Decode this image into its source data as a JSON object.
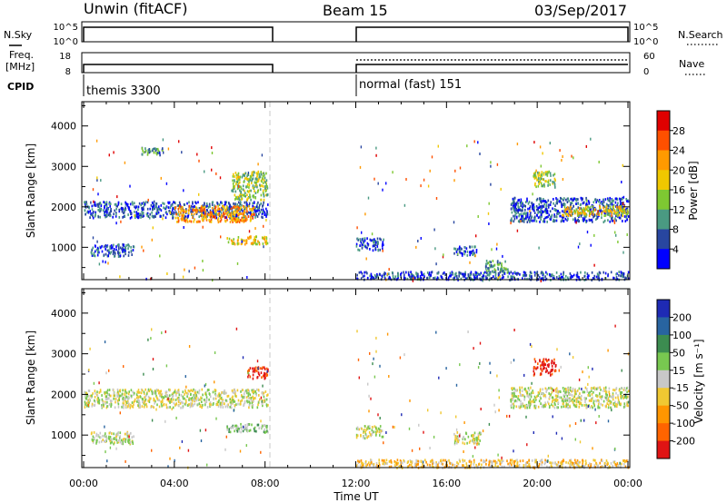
{
  "header": {
    "station": "Unwin (fitACF)",
    "beam": "Beam 15",
    "date": "03/Sep/2017"
  },
  "noise_panel": {
    "left_label": "N.Sky",
    "left_ticks": [
      "10^5",
      "10^0"
    ],
    "right_label": "N.Search",
    "right_ticks": [
      "10^5",
      "10^0"
    ]
  },
  "freq_panel": {
    "left_label_1": "Freq.",
    "left_label_2": "[MHz]",
    "left_ticks": [
      "18",
      "8"
    ],
    "right_label": "Nave",
    "right_ticks": [
      "60",
      "0"
    ]
  },
  "cpid_panel": {
    "label": "CPID",
    "modes": [
      "themis 3300",
      "normal (fast) 151"
    ]
  },
  "x_axis": {
    "label": "Time UT",
    "ticks": [
      "00:00",
      "04:00",
      "08:00",
      "12:00",
      "16:00",
      "20:00",
      "00:00"
    ]
  },
  "chart_data": [
    {
      "type": "heatmap",
      "title": "",
      "xlabel": "Time UT",
      "ylabel": "Slant Range [km]",
      "ylim": [
        200,
        4600
      ],
      "xlim_hours": [
        0,
        24
      ],
      "y_ticks": [
        1000,
        2000,
        3000,
        4000
      ],
      "data_gap_hours": [
        8.1,
        12.0
      ],
      "colorbar": {
        "label": "Power [dB]",
        "ticks": [
          "28",
          "24",
          "20",
          "16",
          "12",
          "8",
          "4"
        ],
        "colors": [
          "#e00000",
          "#ff5000",
          "#ff9a00",
          "#f0c800",
          "#7ec832",
          "#4a9a82",
          "#2846a0",
          "#0000ff"
        ]
      },
      "echo_regions": [
        {
          "t0": 0.0,
          "t1": 8.1,
          "r0": 1750,
          "r1": 2150,
          "level": 6
        },
        {
          "t0": 4.0,
          "t1": 7.5,
          "r0": 1650,
          "r1": 2050,
          "level": 2
        },
        {
          "t0": 6.3,
          "t1": 8.1,
          "r0": 1100,
          "r1": 1300,
          "level": 3
        },
        {
          "t0": 0.3,
          "t1": 2.2,
          "r0": 800,
          "r1": 1100,
          "level": 6
        },
        {
          "t0": 6.5,
          "t1": 8.1,
          "r0": 2200,
          "r1": 2900,
          "level": 4
        },
        {
          "t0": 2.5,
          "t1": 3.5,
          "r0": 3300,
          "r1": 3500,
          "level": 5
        },
        {
          "t0": 12.0,
          "t1": 13.2,
          "r0": 950,
          "r1": 1250,
          "level": 6
        },
        {
          "t0": 16.3,
          "t1": 17.3,
          "r0": 800,
          "r1": 1050,
          "level": 6
        },
        {
          "t0": 17.7,
          "t1": 18.7,
          "r0": 400,
          "r1": 700,
          "level": 5
        },
        {
          "t0": 18.8,
          "t1": 24.0,
          "r0": 1650,
          "r1": 2250,
          "level": 6
        },
        {
          "t0": 21.0,
          "t1": 24.0,
          "r0": 1800,
          "r1": 2050,
          "level": 3
        },
        {
          "t0": 19.8,
          "t1": 20.8,
          "r0": 2500,
          "r1": 2900,
          "level": 4
        },
        {
          "t0": 12.0,
          "t1": 24.0,
          "r0": 220,
          "r1": 420,
          "level": 6
        }
      ]
    },
    {
      "type": "heatmap",
      "title": "",
      "xlabel": "Time UT",
      "ylabel": "Slant Range [km]",
      "ylim": [
        200,
        4600
      ],
      "xlim_hours": [
        0,
        24
      ],
      "y_ticks": [
        1000,
        2000,
        3000,
        4000
      ],
      "data_gap_hours": [
        8.1,
        12.0
      ],
      "colorbar": {
        "label": "Velocity [m s⁻¹]",
        "ticks": [
          "200",
          "100",
          "50",
          "15",
          "-15",
          "-50",
          "-100",
          "-200"
        ],
        "colors": [
          "#1e2ab4",
          "#2864a0",
          "#3c8c50",
          "#78c850",
          "#c8c8c8",
          "#f0c832",
          "#ff9600",
          "#ff6400",
          "#e01414"
        ]
      },
      "echo_regions": [
        {
          "t0": 0.0,
          "t1": 8.1,
          "r0": 1700,
          "r1": 2150,
          "level": 4
        },
        {
          "t0": 6.3,
          "t1": 8.1,
          "r0": 1100,
          "r1": 1300,
          "level": 3
        },
        {
          "t0": 0.3,
          "t1": 2.2,
          "r0": 800,
          "r1": 1100,
          "level": 4
        },
        {
          "t0": 12.0,
          "t1": 13.2,
          "r0": 950,
          "r1": 1250,
          "level": 4
        },
        {
          "t0": 16.3,
          "t1": 17.5,
          "r0": 800,
          "r1": 1100,
          "level": 4
        },
        {
          "t0": 18.8,
          "t1": 24.0,
          "r0": 1700,
          "r1": 2200,
          "level": 4
        },
        {
          "t0": 19.8,
          "t1": 20.8,
          "r0": 2500,
          "r1": 2900,
          "level": 8
        },
        {
          "t0": 7.2,
          "t1": 8.1,
          "r0": 2400,
          "r1": 2700,
          "level": 8
        },
        {
          "t0": 12.0,
          "t1": 24.0,
          "r0": 220,
          "r1": 420,
          "level": 5
        }
      ]
    }
  ]
}
